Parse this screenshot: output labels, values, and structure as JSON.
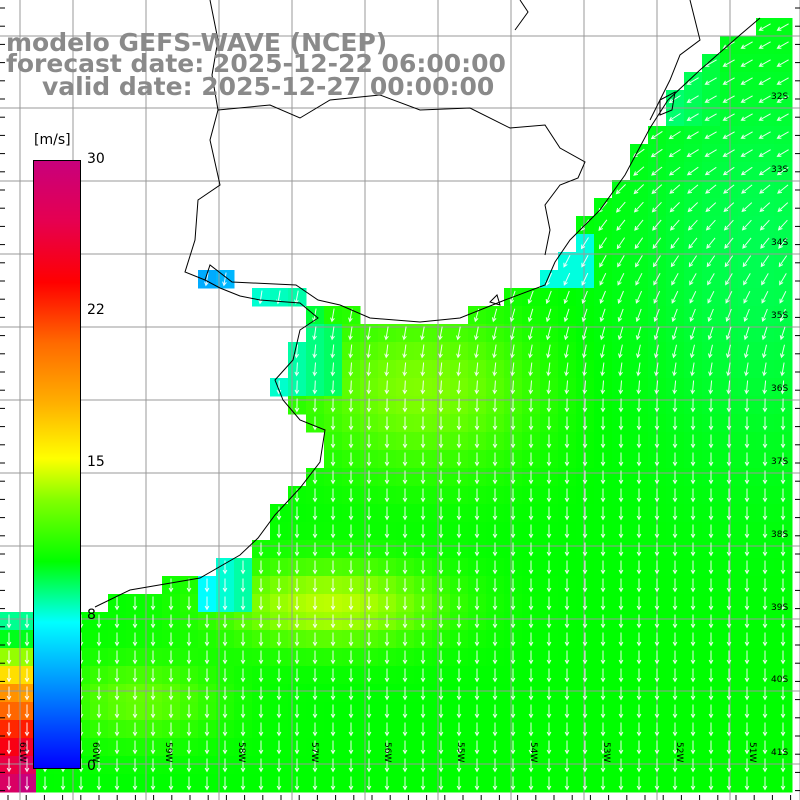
{
  "title": {
    "model": "modelo GEFS-WAVE (NCEP)",
    "forecast_date": "forecast date: 2025-12-22 06:00:00",
    "valid_date": "valid date: 2025-12-27 00:00:00"
  },
  "colorbar": {
    "unit": "[m/s]",
    "ticks": [
      "30",
      "22",
      "15",
      "8",
      "0"
    ],
    "range": [
      0,
      30
    ]
  },
  "axes": {
    "lat_labels": [
      "32S",
      "33S",
      "34S",
      "35S",
      "36S",
      "37S",
      "38S",
      "39S",
      "40S",
      "41S"
    ],
    "lon_labels": [
      "61W",
      "60W",
      "59W",
      "58W",
      "57W",
      "56W",
      "55W",
      "54W",
      "53W",
      "52W",
      "51W"
    ]
  },
  "field": {
    "variable": "wind speed and direction",
    "coast_color": "#000000",
    "grid_color": "#999999",
    "arrow_color": "#ffffff",
    "background_color": "#ffffff"
  }
}
